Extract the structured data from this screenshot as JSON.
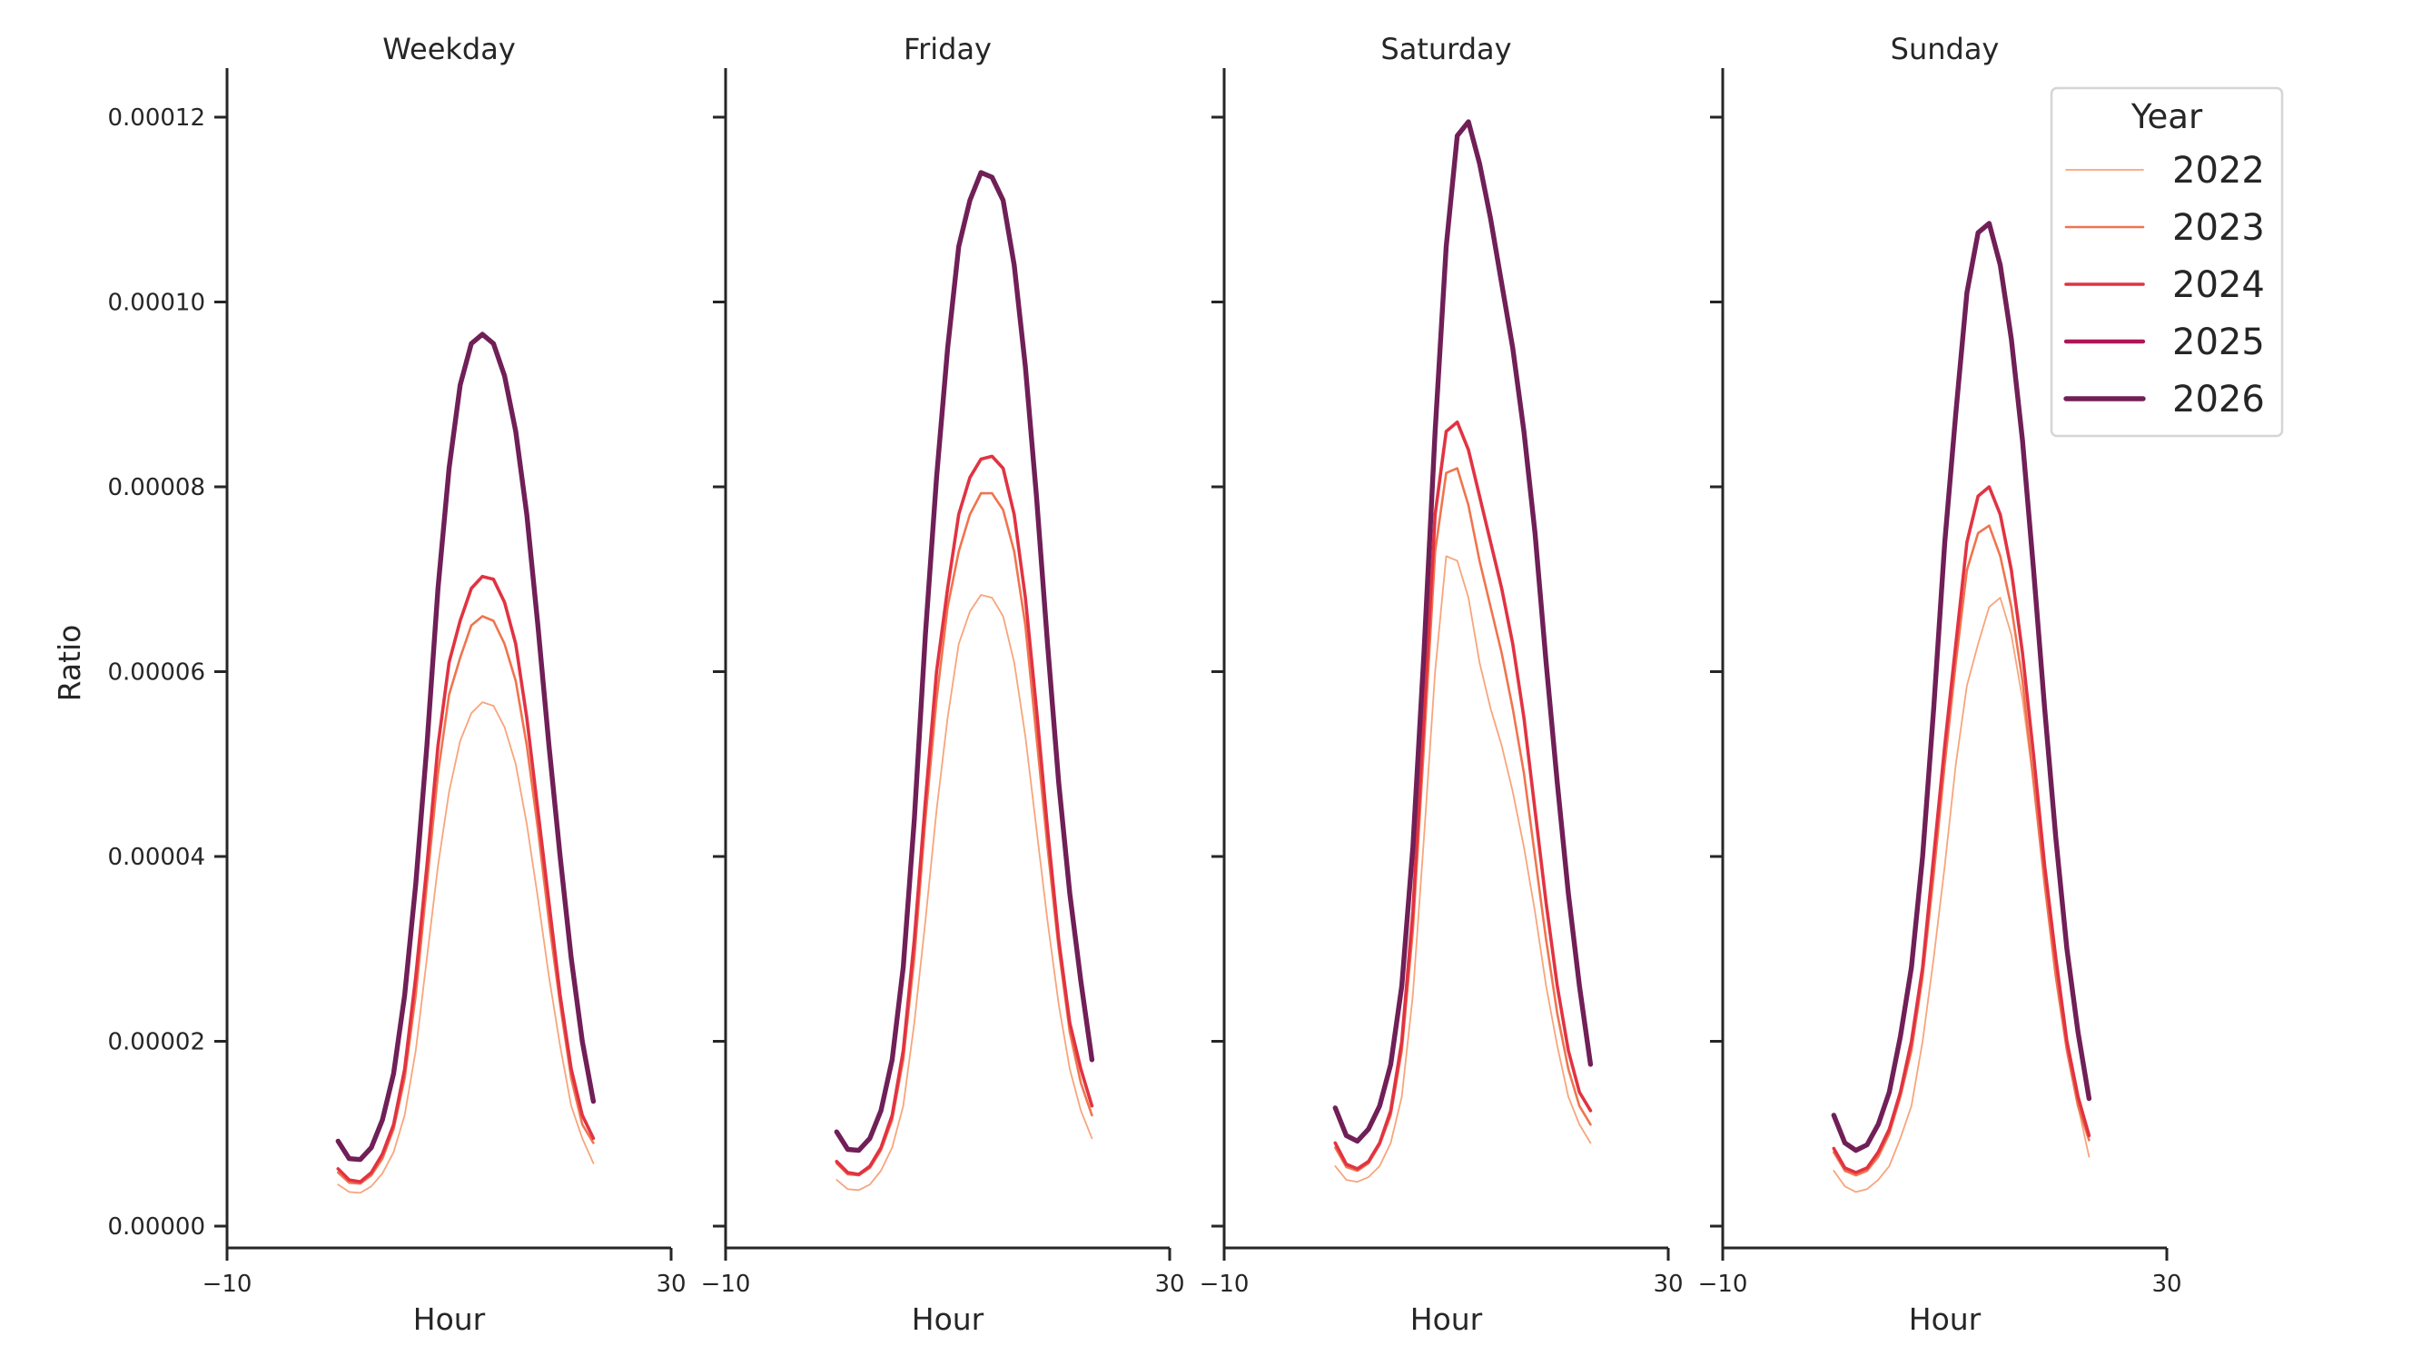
{
  "chart_data": {
    "type": "line",
    "ylabel": "Ratio",
    "xlabel": "Hour",
    "xlim": [
      -10,
      30
    ],
    "xticks": [
      "−10",
      "30"
    ],
    "ylim": [
      -2.2e-06,
      0.0001255
    ],
    "yticks": [
      "0.00000",
      "0.00002",
      "0.00004",
      "0.00006",
      "0.00008",
      "0.00010",
      "0.00012"
    ],
    "ytick_values": [
      0,
      2e-05,
      4e-05,
      6e-05,
      8e-05,
      0.0001,
      0.00012
    ],
    "grid": false,
    "legend": {
      "title": "Year",
      "placement": "top-right"
    },
    "x": [
      0,
      1,
      2,
      3,
      4,
      5,
      6,
      7,
      8,
      9,
      10,
      11,
      12,
      13,
      14,
      15,
      16,
      17,
      18,
      19,
      20,
      21,
      22,
      23
    ],
    "value_scale": "1e-6",
    "series_styles": [
      {
        "name": "2022",
        "color": "#f7a57c"
      },
      {
        "name": "2023",
        "color": "#f0744e"
      },
      {
        "name": "2024",
        "color": "#e13342"
      },
      {
        "name": "2025",
        "color": "#ad1759"
      },
      {
        "name": "2026",
        "color": "#701f57"
      }
    ],
    "panels": [
      {
        "title": "Weekday",
        "series": [
          {
            "name": "2022",
            "values": [
              4.5,
              3.7,
              3.6,
              4.3,
              5.7,
              8,
              12,
              19,
              29,
              39,
              47,
              52.5,
              55.5,
              56.7,
              56.3,
              54,
              50,
              43.5,
              35.5,
              27,
              19.5,
              13,
              9.5,
              6.8
            ]
          },
          {
            "name": "2023",
            "values": [
              5.8,
              4.7,
              4.6,
              5.5,
              7.3,
              10.5,
              16,
              25,
              37,
              49,
              57.5,
              61.5,
              65,
              66,
              65.5,
              63,
              59,
              52,
              43,
              33,
              24,
              16,
              11,
              9
            ]
          },
          {
            "name": "2024",
            "values": [
              6.2,
              5,
              4.8,
              5.8,
              7.8,
              11,
              17,
              27,
              39,
              52,
              61,
              65.5,
              69,
              70.3,
              70,
              67.5,
              63,
              55,
              45,
              35,
              25,
              17,
              12,
              9.5
            ]
          },
          {
            "name": "2025",
            "values": [
              9.2,
              7.3,
              7.2,
              8.5,
              11.5,
              16.5,
              25,
              37,
              52,
              69,
              82,
              91,
              95.5,
              96.5,
              95.5,
              92,
              86,
              77,
              65,
              52,
              40,
              29,
              20,
              13.5
            ]
          },
          {
            "name": "2026",
            "values": [
              9.2,
              7.3,
              7.2,
              8.5,
              11.5,
              16.5,
              25,
              37,
              52,
              69,
              82,
              91,
              95.5,
              96.5,
              95.5,
              92,
              86,
              77,
              65,
              52,
              40,
              29,
              20,
              13.5
            ]
          }
        ]
      },
      {
        "title": "Friday",
        "series": [
          {
            "name": "2022",
            "values": [
              5,
              4,
              3.9,
              4.5,
              6,
              8.5,
              13,
              22,
              33,
              45,
              55,
              63,
              66.5,
              68.3,
              68,
              66,
              61,
              53,
              43,
              33,
              24,
              17,
              12.5,
              9.5
            ]
          },
          {
            "name": "2023",
            "values": [
              6.8,
              5.6,
              5.5,
              6.3,
              8.2,
              11.5,
              18,
              29,
              44,
              57,
              67,
              73,
              77,
              79.3,
              79.3,
              77.5,
              73,
              65,
              53,
              41,
              30,
              21,
              15.5,
              12
            ]
          },
          {
            "name": "2024",
            "values": [
              7,
              5.8,
              5.6,
              6.5,
              8.5,
              12,
              19,
              31,
              46,
              60,
              69,
              77,
              81,
              83,
              83.3,
              82,
              77,
              68,
              56,
              43,
              31,
              22,
              17,
              13
            ]
          },
          {
            "name": "2025",
            "values": [
              10.2,
              8.3,
              8.2,
              9.5,
              12.5,
              18,
              28,
              44,
              64,
              81,
              95,
              106,
              111,
              114,
              113.5,
              111,
              104,
              93,
              79,
              63,
              48,
              36,
              26.5,
              18
            ]
          },
          {
            "name": "2026",
            "values": [
              10.2,
              8.3,
              8.2,
              9.5,
              12.5,
              18,
              28,
              44,
              64,
              81,
              95,
              106,
              111,
              114,
              113.5,
              111,
              104,
              93,
              79,
              63,
              48,
              36,
              26.5,
              18
            ]
          }
        ]
      },
      {
        "title": "Saturday",
        "series": [
          {
            "name": "2022",
            "values": [
              6.5,
              5,
              4.8,
              5.3,
              6.5,
              9,
              14,
              25,
              42,
              60,
              72.5,
              72,
              68,
              61,
              56,
              52,
              47,
              41,
              34,
              26,
              19.5,
              14,
              11,
              9
            ]
          },
          {
            "name": "2023",
            "values": [
              8.5,
              6.4,
              6,
              6.8,
              8.8,
              12,
              19,
              32,
              52,
              73,
              81.5,
              82,
              78,
              72,
              67,
              62,
              56,
              49,
              40,
              31,
              23,
              17,
              13,
              11
            ]
          },
          {
            "name": "2024",
            "values": [
              9,
              6.7,
              6.2,
              7,
              9,
              12.5,
              20,
              34,
              55,
              77,
              86,
              87,
              84,
              79,
              74,
              69,
              63,
              55,
              45,
              35,
              26,
              19,
              14.5,
              12.5
            ]
          },
          {
            "name": "2025",
            "values": [
              12.8,
              9.8,
              9.2,
              10.5,
              13,
              17.5,
              26,
              41,
              62,
              86,
              106,
              118,
              119.5,
              115,
              109,
              102,
              95,
              86,
              75,
              61,
              48,
              36,
              26,
              17.5
            ]
          },
          {
            "name": "2026",
            "values": [
              12.8,
              9.8,
              9.2,
              10.5,
              13,
              17.5,
              26,
              41,
              62,
              86,
              106,
              118,
              119.5,
              115,
              109,
              102,
              95,
              86,
              75,
              61,
              48,
              36,
              26,
              17.5
            ]
          }
        ]
      },
      {
        "title": "Sunday",
        "series": [
          {
            "name": "2022",
            "values": [
              6,
              4.3,
              3.7,
              4,
              5,
              6.5,
              9.5,
              13,
              20,
              29,
              39,
              50,
              58.5,
              63,
              67,
              68,
              64,
              57,
              48,
              38,
              28,
              20,
              13,
              7.5
            ]
          },
          {
            "name": "2023",
            "values": [
              8,
              6,
              5.5,
              6,
              7.5,
              10,
              14,
              19,
              27,
              38,
              50,
              61,
              71,
              75,
              75.8,
              72.5,
              67,
              59,
              48,
              37,
              27,
              19,
              13,
              9.3
            ]
          },
          {
            "name": "2024",
            "values": [
              8.4,
              6.3,
              5.8,
              6.3,
              8,
              10.5,
              14.5,
              20,
              28,
              40,
              52,
              63,
              74,
              79,
              80,
              77,
              71,
              62,
              51,
              39,
              29,
              20,
              14,
              9.8
            ]
          },
          {
            "name": "2025",
            "values": [
              12,
              9,
              8.2,
              8.8,
              11,
              14.5,
              20.5,
              28,
              40,
              56,
              74,
              88,
              101,
              107.5,
              108.5,
              104,
              96,
              85,
              71,
              56,
              42,
              30,
              21,
              13.8
            ]
          },
          {
            "name": "2026",
            "values": [
              12,
              9,
              8.2,
              8.8,
              11,
              14.5,
              20.5,
              28,
              40,
              56,
              74,
              88,
              101,
              107.5,
              108.5,
              104,
              96,
              85,
              71,
              56,
              42,
              30,
              21,
              13.8
            ]
          }
        ]
      }
    ]
  }
}
